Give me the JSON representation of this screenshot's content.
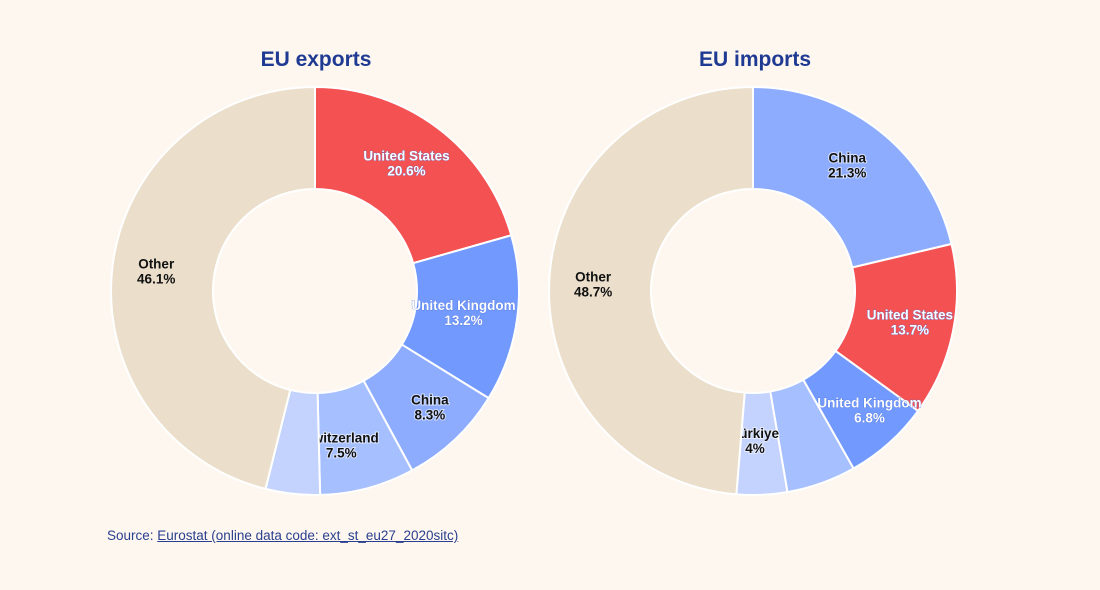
{
  "chart_data": [
    {
      "type": "pie",
      "title": "EU exports",
      "slices": [
        {
          "label": "United States",
          "value": 20.6,
          "display": "20.6%",
          "color": "#f45153",
          "text_style": "light"
        },
        {
          "label": "United Kingdom",
          "value": 13.2,
          "display": "13.2%",
          "color": "#7299fd",
          "text_style": "light"
        },
        {
          "label": "China",
          "value": 8.3,
          "display": "8.3%",
          "color": "#8dacfe",
          "text_style": "dark"
        },
        {
          "label": "Switzerland",
          "value": 7.5,
          "display": "7.5%",
          "color": "#a6bffe",
          "text_style": "dark"
        },
        {
          "label": "",
          "value": 4.3,
          "display": "",
          "color": "#c3d3fe",
          "text_style": "dark"
        },
        {
          "label": "Other",
          "value": 46.1,
          "display": "46.1%",
          "color": "#ebdfcc",
          "text_style": "on-beige"
        }
      ]
    },
    {
      "type": "pie",
      "title": "EU imports",
      "slices": [
        {
          "label": "China",
          "value": 21.3,
          "display": "21.3%",
          "color": "#8dacfe",
          "text_style": "dark"
        },
        {
          "label": "United States",
          "value": 13.7,
          "display": "13.7%",
          "color": "#f45153",
          "text_style": "light"
        },
        {
          "label": "United Kingdom",
          "value": 6.8,
          "display": "6.8%",
          "color": "#7299fd",
          "text_style": "light"
        },
        {
          "label": "",
          "value": 5.5,
          "display": "",
          "color": "#a6bffe",
          "text_style": "dark"
        },
        {
          "label": "Türkiye",
          "value": 4,
          "display": "4%",
          "color": "#c3d3fe",
          "text_style": "dark"
        },
        {
          "label": "Other",
          "value": 48.7,
          "display": "48.7%",
          "color": "#ebdfcc",
          "text_style": "on-beige"
        }
      ]
    }
  ],
  "source": {
    "prefix": "Source: ",
    "link_text": "Eurostat (online data code: ext_st_eu27_2020sitc)"
  }
}
